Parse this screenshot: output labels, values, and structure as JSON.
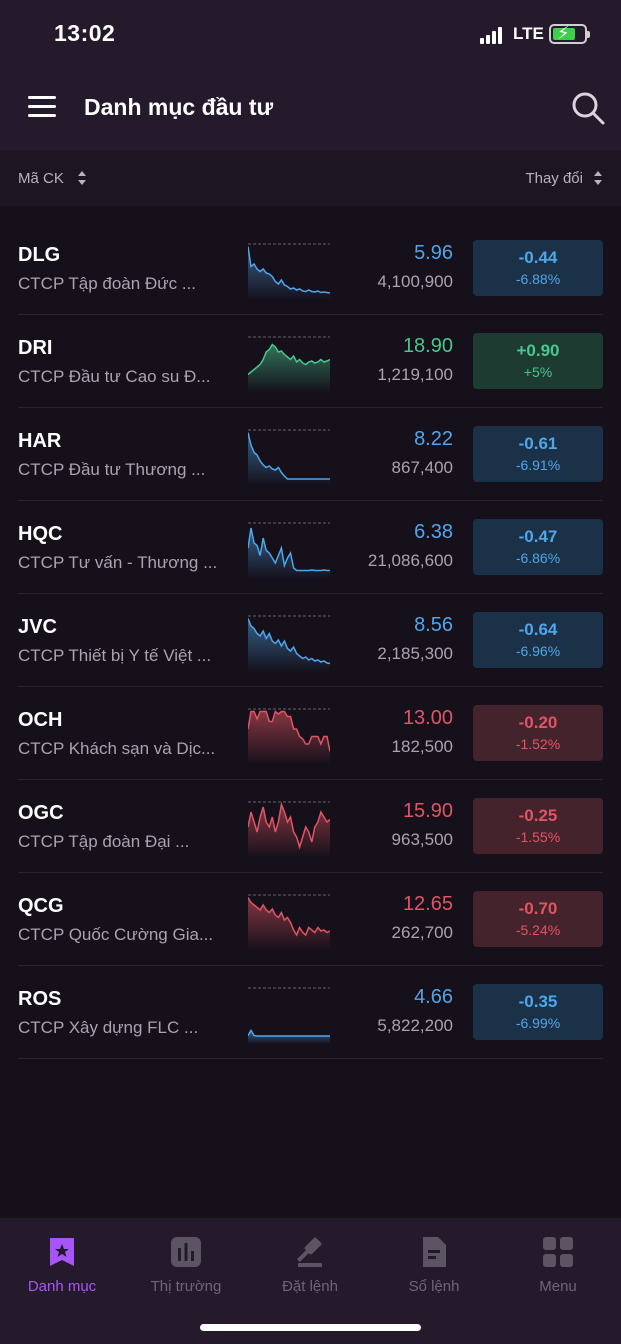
{
  "status": {
    "time": "13:02",
    "network": "LTE"
  },
  "header": {
    "title": "Danh mục đầu tư"
  },
  "sort": {
    "left_label": "Mã CK",
    "right_label": "Thay đổi"
  },
  "colors": {
    "down": "#4fa6ea",
    "up": "#48c78e",
    "red": "#e05564",
    "accent": "#a855f7"
  },
  "stocks": [
    {
      "code": "DLG",
      "name": "CTCP Tập đoàn Đức ...",
      "price": "5.96",
      "volume": "4,100,900",
      "change": "-0.44",
      "change_pct": "-6.88%",
      "trend": "down",
      "spark": [
        0.95,
        0.55,
        0.6,
        0.5,
        0.45,
        0.5,
        0.42,
        0.4,
        0.35,
        0.25,
        0.2,
        0.28,
        0.18,
        0.15,
        0.1,
        0.12,
        0.08,
        0.1,
        0.06,
        0.05,
        0.08,
        0.05,
        0.04,
        0.06,
        0.03,
        0.04,
        0.03,
        0.02
      ]
    },
    {
      "code": "DRI",
      "name": "CTCP Đầu tư Cao su Đ...",
      "price": "18.90",
      "volume": "1,219,100",
      "change": "+0.90",
      "change_pct": "+5%",
      "trend": "up",
      "spark": [
        0.25,
        0.3,
        0.35,
        0.4,
        0.45,
        0.55,
        0.7,
        0.75,
        0.85,
        0.8,
        0.7,
        0.72,
        0.65,
        0.6,
        0.55,
        0.62,
        0.5,
        0.55,
        0.48,
        0.45,
        0.5,
        0.52,
        0.48,
        0.5,
        0.55,
        0.5,
        0.52,
        0.55
      ]
    },
    {
      "code": "HAR",
      "name": "CTCP Đầu tư Thương ...",
      "price": "8.22",
      "volume": "867,400",
      "change": "-0.61",
      "change_pct": "-6.91%",
      "trend": "down",
      "spark": [
        0.95,
        0.7,
        0.55,
        0.5,
        0.38,
        0.3,
        0.25,
        0.28,
        0.22,
        0.2,
        0.25,
        0.15,
        0.08,
        0.02,
        0.02,
        0.02,
        0.02,
        0.02,
        0.02,
        0.02,
        0.02,
        0.02,
        0.02,
        0.02,
        0.02,
        0.02,
        0.02,
        0.02
      ]
    },
    {
      "code": "HQC",
      "name": "CTCP Tư vấn - Thương ...",
      "price": "6.38",
      "volume": "21,086,600",
      "change": "-0.47",
      "change_pct": "-6.86%",
      "trend": "down",
      "spark": [
        0.5,
        0.9,
        0.6,
        0.55,
        0.35,
        0.7,
        0.45,
        0.4,
        0.3,
        0.2,
        0.35,
        0.5,
        0.15,
        0.3,
        0.4,
        0.1,
        0.05,
        0.05,
        0.05,
        0.05,
        0.05,
        0.06,
        0.05,
        0.05,
        0.05,
        0.06,
        0.05,
        0.05
      ]
    },
    {
      "code": "JVC",
      "name": "CTCP Thiết bị Y tế Việt ...",
      "price": "8.56",
      "volume": "2,185,300",
      "change": "-0.64",
      "change_pct": "-6.96%",
      "trend": "down",
      "spark": [
        0.95,
        0.8,
        0.75,
        0.65,
        0.6,
        0.7,
        0.55,
        0.65,
        0.5,
        0.45,
        0.52,
        0.4,
        0.5,
        0.35,
        0.3,
        0.38,
        0.25,
        0.2,
        0.15,
        0.18,
        0.12,
        0.15,
        0.1,
        0.12,
        0.08,
        0.1,
        0.06,
        0.05
      ]
    },
    {
      "code": "OCH",
      "name": "CTCP Khách sạn và Dịc...",
      "price": "13.00",
      "volume": "182,500",
      "change": "-0.20",
      "change_pct": "-1.52%",
      "trend": "red",
      "spark": [
        0.6,
        0.95,
        0.95,
        0.8,
        0.95,
        0.95,
        0.95,
        0.75,
        0.75,
        0.95,
        0.9,
        0.95,
        0.95,
        0.85,
        0.85,
        0.6,
        0.6,
        0.45,
        0.4,
        0.3,
        0.3,
        0.45,
        0.45,
        0.45,
        0.3,
        0.45,
        0.45,
        0.15
      ]
    },
    {
      "code": "OGC",
      "name": "CTCP Tập đoàn Đại ...",
      "price": "15.90",
      "volume": "963,500",
      "change": "-0.25",
      "change_pct": "-1.55%",
      "trend": "red",
      "spark": [
        0.5,
        0.8,
        0.6,
        0.4,
        0.7,
        0.9,
        0.6,
        0.5,
        0.7,
        0.4,
        0.6,
        0.95,
        0.8,
        0.6,
        0.7,
        0.4,
        0.3,
        0.1,
        0.3,
        0.5,
        0.4,
        0.2,
        0.5,
        0.6,
        0.8,
        0.7,
        0.6,
        0.65
      ]
    },
    {
      "code": "QCG",
      "name": "CTCP Quốc Cường Gia...",
      "price": "12.65",
      "volume": "262,700",
      "change": "-0.70",
      "change_pct": "-5.24%",
      "trend": "red",
      "spark": [
        0.95,
        0.85,
        0.8,
        0.75,
        0.7,
        0.8,
        0.7,
        0.65,
        0.72,
        0.6,
        0.55,
        0.65,
        0.5,
        0.55,
        0.45,
        0.3,
        0.2,
        0.35,
        0.25,
        0.2,
        0.35,
        0.3,
        0.25,
        0.35,
        0.28,
        0.3,
        0.25,
        0.28
      ]
    },
    {
      "code": "ROS",
      "name": "CTCP Xây dựng FLC ...",
      "price": "4.66",
      "volume": "5,822,200",
      "change": "-0.35",
      "change_pct": "-6.99%",
      "trend": "down",
      "spark": [
        0.05,
        0.15,
        0.05,
        0.04,
        0.04,
        0.04,
        0.04,
        0.04,
        0.04,
        0.04,
        0.04,
        0.04,
        0.04,
        0.04,
        0.04,
        0.04,
        0.04,
        0.04,
        0.04,
        0.04,
        0.04,
        0.04,
        0.04,
        0.04,
        0.04,
        0.04,
        0.04,
        0.04
      ]
    }
  ],
  "tabs": [
    {
      "label": "Danh mục",
      "icon": "bookmark-star-icon",
      "active": true
    },
    {
      "label": "Thị trường",
      "icon": "bar-chart-icon",
      "active": false
    },
    {
      "label": "Đặt lệnh",
      "icon": "gavel-icon",
      "active": false
    },
    {
      "label": "Sổ lệnh",
      "icon": "document-icon",
      "active": false
    },
    {
      "label": "Menu",
      "icon": "grid-icon",
      "active": false
    }
  ]
}
